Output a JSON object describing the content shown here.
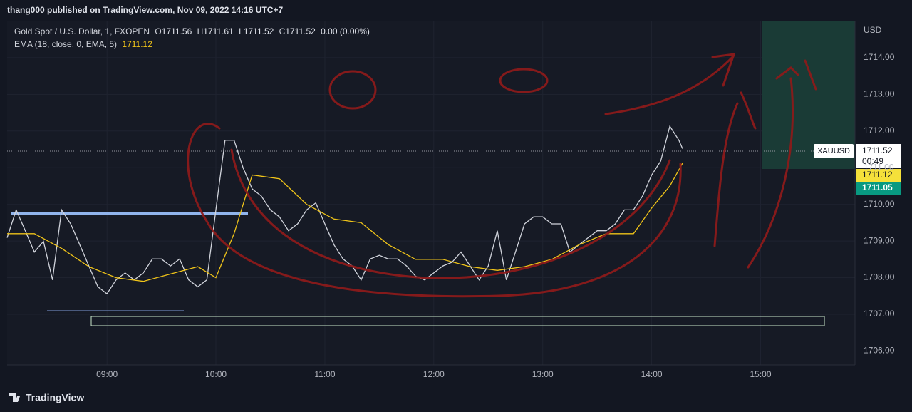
{
  "header": "thang000 published on TradingView.com, Nov 09, 2022 14:16 UTC+7",
  "legend": {
    "symbol": "Gold Spot / U.S. Dollar, 1, FXOPEN",
    "o_label": "O",
    "open": 1711.56,
    "h_label": "H",
    "high": 1711.61,
    "l_label": "L",
    "low": 1711.52,
    "c_label": "C",
    "close": 1711.52,
    "change": "0.00 (0.00%)",
    "ema_label": "EMA (18, close, 0, EMA, 5)",
    "ema_value": 1711.12
  },
  "currency": "USD",
  "price_tags": {
    "symbol": "XAUUSD",
    "last": 1711.52,
    "countdown": "00:49",
    "ema": 1711.12,
    "bid": 1711.05
  },
  "footer": "TradingView",
  "chart_data": {
    "type": "line",
    "xlim": [
      485,
      952
    ],
    "ylim": [
      1705.62,
      1714.99
    ],
    "xticks": [
      {
        "value": 540,
        "label": "09:00"
      },
      {
        "value": 600,
        "label": "10:00"
      },
      {
        "value": 660,
        "label": "11:00"
      },
      {
        "value": 720,
        "label": "12:00"
      },
      {
        "value": 780,
        "label": "13:00"
      },
      {
        "value": 840,
        "label": "14:00"
      },
      {
        "value": 900,
        "label": "15:00"
      }
    ],
    "yticks": [
      {
        "value": 1706,
        "label": "1706.00"
      },
      {
        "value": 1707,
        "label": "1707.00"
      },
      {
        "value": 1708,
        "label": "1708.00"
      },
      {
        "value": 1709,
        "label": "1709.00"
      },
      {
        "value": 1710,
        "label": "1710.00"
      },
      {
        "value": 1711,
        "label": "1711.00"
      },
      {
        "value": 1712,
        "label": "1712.00"
      },
      {
        "value": 1713,
        "label": "1713.00"
      },
      {
        "value": 1714,
        "label": "1714.00"
      }
    ],
    "grid": true,
    "series": [
      {
        "color": "#d1d4dc",
        "x": [
          485,
          490,
          495,
          500,
          505,
          510,
          515,
          520,
          525,
          530,
          535,
          540,
          545,
          550,
          555,
          560,
          565,
          570,
          575,
          580,
          585,
          590,
          595,
          600,
          605,
          610,
          615,
          620,
          625,
          630,
          635,
          640,
          645,
          650,
          655,
          660,
          665,
          670,
          675,
          680,
          685,
          690,
          695,
          700,
          705,
          710,
          715,
          720,
          725,
          730,
          735,
          740,
          745,
          750,
          755,
          760,
          765,
          770,
          775,
          780,
          785,
          790,
          795,
          800,
          805,
          810,
          815,
          820,
          825,
          830,
          835,
          840,
          845,
          850,
          855,
          857
        ],
        "values": [
          1709.09,
          1709.85,
          1709.28,
          1708.7,
          1708.99,
          1707.94,
          1709.85,
          1709.47,
          1708.9,
          1708.32,
          1707.75,
          1707.56,
          1707.94,
          1708.13,
          1707.94,
          1708.13,
          1708.51,
          1708.51,
          1708.32,
          1708.51,
          1707.94,
          1707.75,
          1707.94,
          1709.85,
          1711.75,
          1711.75,
          1710.99,
          1710.42,
          1710.23,
          1709.85,
          1709.66,
          1709.28,
          1709.47,
          1709.85,
          1710.04,
          1709.47,
          1708.9,
          1708.51,
          1708.32,
          1707.94,
          1708.51,
          1708.61,
          1708.51,
          1708.51,
          1708.32,
          1708.04,
          1707.94,
          1708.13,
          1708.32,
          1708.42,
          1708.7,
          1708.32,
          1707.94,
          1708.32,
          1709.28,
          1707.94,
          1708.7,
          1709.47,
          1709.66,
          1709.66,
          1709.47,
          1709.47,
          1708.7,
          1708.9,
          1709.09,
          1709.28,
          1709.28,
          1709.47,
          1709.85,
          1709.85,
          1710.23,
          1710.8,
          1711.18,
          1712.13,
          1711.75,
          1711.52
        ]
      },
      {
        "color": "#f0c419",
        "x": [
          485,
          500,
          515,
          530,
          545,
          560,
          575,
          590,
          600,
          610,
          620,
          635,
          650,
          665,
          680,
          695,
          710,
          725,
          740,
          755,
          770,
          785,
          800,
          815,
          830,
          840,
          850,
          857
        ],
        "values": [
          1709.2,
          1709.2,
          1708.8,
          1708.3,
          1708.0,
          1707.9,
          1708.1,
          1708.3,
          1708.0,
          1709.2,
          1710.8,
          1710.7,
          1710.0,
          1709.6,
          1709.5,
          1708.9,
          1708.5,
          1708.5,
          1708.3,
          1708.2,
          1708.3,
          1708.5,
          1708.9,
          1709.2,
          1709.2,
          1709.9,
          1710.5,
          1711.12
        ]
      }
    ]
  }
}
